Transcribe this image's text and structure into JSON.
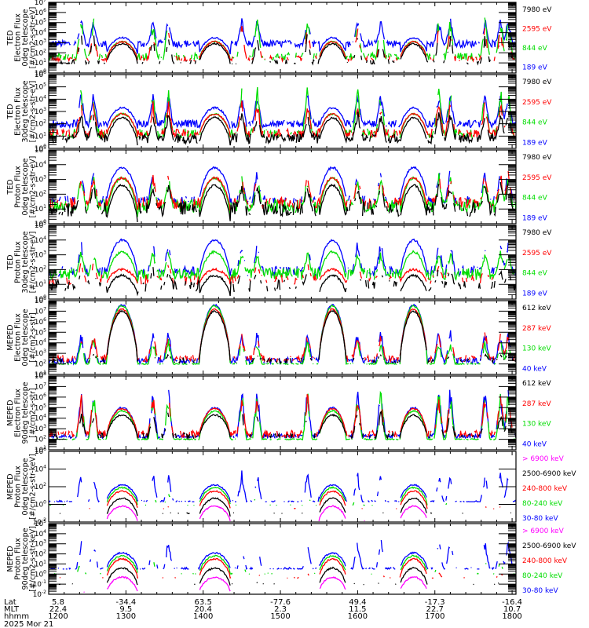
{
  "chart_data": {
    "type": "line",
    "title": "",
    "date_label": "2025 Mor 21",
    "x_axis": {
      "rows": [
        {
          "label": "Lat",
          "values": [
            "5.8",
            "-34.4",
            "63.5",
            "-77.6",
            "49.4",
            "-17.3",
            "-16.4"
          ]
        },
        {
          "label": "MLT",
          "values": [
            "22.4",
            "9.5",
            "20.4",
            "2.3",
            "11.5",
            "22.7",
            "10.7"
          ]
        },
        {
          "label": "hhmm",
          "values": [
            "1200",
            "1300",
            "1400",
            "1500",
            "1600",
            "1700",
            "1800"
          ]
        }
      ],
      "range_hours": [
        12.0,
        18.05
      ],
      "major_ticks_hours": [
        12,
        13,
        14,
        15,
        16,
        17,
        18
      ],
      "minor_per_major": 5
    },
    "panels": [
      {
        "ylabel": [
          "TED",
          "Electron Flux",
          "0deg telescope",
          "[#/cm2-s-str-eV]"
        ],
        "ylog_range": [
          0,
          7
        ],
        "ytick_exps": [
          0,
          1,
          2,
          3,
          4,
          5,
          6,
          7
        ],
        "legend": [
          {
            "text": "7980 eV",
            "color": "#000000"
          },
          {
            "text": "2595 eV",
            "color": "#ff0000"
          },
          {
            "text": "844 eV",
            "color": "#00dd00"
          },
          {
            "text": "189 eV",
            "color": "#0000ff"
          }
        ],
        "series": [
          {
            "name": "189 eV",
            "color": "#0000ff",
            "base": 2.9,
            "noise": 0.35,
            "arc_peak": 3.5,
            "spike_peak": 5.6,
            "floor": 1.8,
            "gap_prob": 0.05
          },
          {
            "name": "844 eV",
            "color": "#00dd00",
            "base": 1.6,
            "noise": 0.4,
            "arc_peak": 3.1,
            "spike_peak": 5.8,
            "floor": 1.3,
            "gap_prob": 0.3
          },
          {
            "name": "2595 eV",
            "color": "#ff0000",
            "base": 1.4,
            "noise": 0.3,
            "arc_peak": 3.1,
            "spike_peak": 4.7,
            "floor": 1.2,
            "gap_prob": 0.45
          },
          {
            "name": "7980 eV",
            "color": "#000000",
            "base": 1.0,
            "noise": 0.35,
            "arc_peak": 2.9,
            "spike_peak": 4.0,
            "floor": 0.9,
            "gap_prob": 0.5
          }
        ]
      },
      {
        "ylabel": [
          "TED",
          "Electron Flux",
          "30deg telescope",
          "[#/cm2-s-str-eV]"
        ],
        "ylog_range": [
          0,
          6
        ],
        "ytick_exps": [
          0,
          1,
          2,
          3,
          4,
          5,
          6
        ],
        "legend": [
          {
            "text": "7980 eV",
            "color": "#000000"
          },
          {
            "text": "2595 eV",
            "color": "#ff0000"
          },
          {
            "text": "844 eV",
            "color": "#00dd00"
          },
          {
            "text": "189 eV",
            "color": "#0000ff"
          }
        ],
        "series": [
          {
            "name": "189 eV",
            "color": "#0000ff",
            "base": 2.0,
            "noise": 0.3,
            "arc_peak": 3.3,
            "spike_peak": 4.7,
            "floor": 1.5,
            "gap_prob": 0.05
          },
          {
            "name": "844 eV",
            "color": "#00dd00",
            "base": 1.2,
            "noise": 0.4,
            "arc_peak": 2.8,
            "spike_peak": 5.2,
            "floor": 0.8,
            "gap_prob": 0.3
          },
          {
            "name": "2595 eV",
            "color": "#ff0000",
            "base": 1.2,
            "noise": 0.35,
            "arc_peak": 2.8,
            "spike_peak": 4.0,
            "floor": 0.9,
            "gap_prob": 0.2
          },
          {
            "name": "7980 eV",
            "color": "#000000",
            "base": 0.8,
            "noise": 0.4,
            "arc_peak": 2.5,
            "spike_peak": 3.2,
            "floor": 0.2,
            "gap_prob": 0.1
          }
        ]
      },
      {
        "ylabel": [
          "TED",
          "Proton Flux",
          "0deg telescope",
          "[#/cm2-s-str-eV]"
        ],
        "ylog_range": [
          0,
          5
        ],
        "ytick_exps": [
          0,
          1,
          2,
          3,
          4,
          5
        ],
        "legend": [
          {
            "text": "7980 eV",
            "color": "#000000"
          },
          {
            "text": "2595 eV",
            "color": "#ff0000"
          },
          {
            "text": "844 eV",
            "color": "#00dd00"
          },
          {
            "text": "189 eV",
            "color": "#0000ff"
          }
        ],
        "series": [
          {
            "name": "189 eV",
            "color": "#0000ff",
            "base": 1.6,
            "noise": 0.3,
            "arc_peak": 3.8,
            "spike_peak": 3.9,
            "floor": 1.4,
            "gap_prob": 0.4
          },
          {
            "name": "844 eV",
            "color": "#00dd00",
            "base": 1.2,
            "noise": 0.45,
            "arc_peak": 3.1,
            "spike_peak": 3.5,
            "floor": 0.3,
            "gap_prob": 0.1
          },
          {
            "name": "2595 eV",
            "color": "#ff0000",
            "base": 1.4,
            "noise": 0.4,
            "arc_peak": 3.1,
            "spike_peak": 3.6,
            "floor": 0.8,
            "gap_prob": 0.3
          },
          {
            "name": "7980 eV",
            "color": "#000000",
            "base": 1.0,
            "noise": 0.5,
            "arc_peak": 2.6,
            "spike_peak": 2.9,
            "floor": 0.0,
            "gap_prob": 0.2
          }
        ]
      },
      {
        "ylabel": [
          "TED",
          "Proton Flux",
          "30deg telescope",
          "[#/cm2-s-str-eV]"
        ],
        "ylog_range": [
          0,
          5
        ],
        "ytick_exps": [
          0,
          1,
          2,
          3,
          4,
          5
        ],
        "legend": [
          {
            "text": "7980 eV",
            "color": "#000000"
          },
          {
            "text": "2595 eV",
            "color": "#ff0000"
          },
          {
            "text": "844 eV",
            "color": "#00dd00"
          },
          {
            "text": "189 eV",
            "color": "#0000ff"
          }
        ],
        "series": [
          {
            "name": "189 eV",
            "color": "#0000ff",
            "base": 1.9,
            "noise": 0.35,
            "arc_peak": 4.0,
            "spike_peak": 4.2,
            "floor": 1.4,
            "gap_prob": 0.3
          },
          {
            "name": "844 eV",
            "color": "#00dd00",
            "base": 1.7,
            "noise": 0.4,
            "arc_peak": 3.2,
            "spike_peak": 3.4,
            "floor": 1.0,
            "gap_prob": 0.05
          },
          {
            "name": "2595 eV",
            "color": "#ff0000",
            "base": 1.3,
            "noise": 0.35,
            "arc_peak": 2.0,
            "spike_peak": 2.6,
            "floor": 1.0,
            "gap_prob": 0.5
          },
          {
            "name": "7980 eV",
            "color": "#000000",
            "base": 0.9,
            "noise": 0.4,
            "arc_peak": 1.6,
            "spike_peak": 2.2,
            "floor": 0.2,
            "gap_prob": 0.5
          }
        ]
      },
      {
        "ylabel": [
          "MEPED",
          "Electron Flux",
          "0deg telescope",
          "[#/cm2-s-str]"
        ],
        "ylog_range": [
          1,
          8
        ],
        "ytick_exps": [
          1,
          2,
          3,
          4,
          5,
          6,
          7,
          8
        ],
        "legend": [
          {
            "text": "612 keV",
            "color": "#000000"
          },
          {
            "text": "287 keV",
            "color": "#ff0000"
          },
          {
            "text": "130 keV",
            "color": "#00dd00"
          },
          {
            "text": "40 keV",
            "color": "#0000ff"
          }
        ],
        "series": [
          {
            "name": "40 keV",
            "color": "#0000ff",
            "base": 2.3,
            "noise": 0.3,
            "arc_peak": 7.6,
            "spike_peak": 5.5,
            "floor": 2.0,
            "gap_prob": 0.1
          },
          {
            "name": "130 keV",
            "color": "#00dd00",
            "base": 2.0,
            "noise": 0.05,
            "arc_peak": 7.5,
            "spike_peak": 4.5,
            "floor": 1.95,
            "gap_prob": 0.2
          },
          {
            "name": "287 keV",
            "color": "#ff0000",
            "base": 2.5,
            "noise": 0.35,
            "arc_peak": 7.2,
            "spike_peak": 5.2,
            "floor": 2.2,
            "gap_prob": 0.35
          },
          {
            "name": "612 keV",
            "color": "#000000",
            "base": 2.3,
            "noise": 0.3,
            "arc_peak": 7.0,
            "spike_peak": 3.0,
            "floor": 2.1,
            "gap_prob": 0.5
          }
        ]
      },
      {
        "ylabel": [
          "MEPED",
          "Electron Flux",
          "90deg telescope",
          "[#/cm2-s-str]"
        ],
        "ylog_range": [
          1,
          8
        ],
        "ytick_exps": [
          1,
          2,
          3,
          4,
          5,
          6,
          7,
          8
        ],
        "legend": [
          {
            "text": "612 keV",
            "color": "#000000"
          },
          {
            "text": "287 keV",
            "color": "#ff0000"
          },
          {
            "text": "130 keV",
            "color": "#00dd00"
          },
          {
            "text": "40 keV",
            "color": "#0000ff"
          }
        ],
        "series": [
          {
            "name": "40 keV",
            "color": "#0000ff",
            "base": 2.3,
            "noise": 0.2,
            "arc_peak": 5.0,
            "spike_peak": 7.3,
            "floor": 2.0,
            "gap_prob": 0.1
          },
          {
            "name": "130 keV",
            "color": "#00dd00",
            "base": 2.0,
            "noise": 0.05,
            "arc_peak": 4.7,
            "spike_peak": 7.0,
            "floor": 1.95,
            "gap_prob": 0.15
          },
          {
            "name": "287 keV",
            "color": "#ff0000",
            "base": 2.5,
            "noise": 0.35,
            "arc_peak": 4.9,
            "spike_peak": 6.6,
            "floor": 2.2,
            "gap_prob": 0.3
          },
          {
            "name": "612 keV",
            "color": "#000000",
            "base": 2.3,
            "noise": 0.3,
            "arc_peak": 4.3,
            "spike_peak": 4.9,
            "floor": 2.1,
            "gap_prob": 0.4
          }
        ]
      },
      {
        "ylabel": [
          "MEPED",
          "Proton Flux",
          "0deg telescope",
          "[#/cm2-s-str-keV]"
        ],
        "ylog_range": [
          -2,
          6
        ],
        "ytick_exps": [
          -2,
          0,
          2,
          4,
          6
        ],
        "legend": [
          {
            "text": "> 6900 keV",
            "color": "#ff00ff"
          },
          {
            "text": "2500-6900 keV",
            "color": "#000000"
          },
          {
            "text": "240-800 keV",
            "color": "#ff0000"
          },
          {
            "text": "80-240 keV",
            "color": "#00dd00"
          },
          {
            "text": "30-80 keV",
            "color": "#0000ff"
          }
        ],
        "series": [
          {
            "name": "30-80 keV",
            "color": "#0000ff",
            "base": 0.3,
            "noise": 0.15,
            "arc_peak": 2.2,
            "spike_peak": 3.9,
            "floor": 0.3,
            "gap_prob": 0.35
          },
          {
            "name": "80-240 keV",
            "color": "#00dd00",
            "base": -0.1,
            "noise": 0.05,
            "arc_peak": 1.9,
            "spike_peak": 1.6,
            "floor": -0.1,
            "gap_prob": 0.7
          },
          {
            "name": "240-800 keV",
            "color": "#ff0000",
            "base": -0.5,
            "noise": 0.05,
            "arc_peak": 1.5,
            "spike_peak": -0.2,
            "floor": -0.5,
            "gap_prob": 0.85
          },
          {
            "name": "2500-6900 keV",
            "color": "#000000",
            "base": -1.0,
            "noise": 0.05,
            "arc_peak": 0.7,
            "spike_peak": -0.9,
            "floor": -1.4,
            "gap_prob": 0.8
          },
          {
            "name": "> 6900 keV",
            "color": "#ff00ff",
            "base": -1.9,
            "noise": 0.05,
            "arc_peak": -0.2,
            "spike_peak": -1.9,
            "floor": -1.9,
            "gap_prob": 0.97
          }
        ]
      },
      {
        "ylabel": [
          "MEPED",
          "Proton Flux",
          "90deg telescope",
          "[#/cm2-s-str-keV]"
        ],
        "ylog_range": [
          -2,
          5
        ],
        "ytick_exps": [
          -2,
          -1,
          0,
          1,
          2,
          3,
          4,
          5
        ],
        "legend": [
          {
            "text": "> 6900 keV",
            "color": "#ff00ff"
          },
          {
            "text": "2500-6900 keV",
            "color": "#000000"
          },
          {
            "text": "240-800 keV",
            "color": "#ff0000"
          },
          {
            "text": "80-240 keV",
            "color": "#00dd00"
          },
          {
            "text": "30-80 keV",
            "color": "#0000ff"
          }
        ],
        "series": [
          {
            "name": "30-80 keV",
            "color": "#0000ff",
            "base": 0.5,
            "noise": 0.15,
            "arc_peak": 2.1,
            "spike_peak": 3.7,
            "floor": 0.5,
            "gap_prob": 0.35
          },
          {
            "name": "80-240 keV",
            "color": "#00dd00",
            "base": 0.0,
            "noise": 0.1,
            "arc_peak": 1.8,
            "spike_peak": 1.5,
            "floor": 0.0,
            "gap_prob": 0.7
          },
          {
            "name": "240-800 keV",
            "color": "#ff0000",
            "base": -0.4,
            "noise": 0.1,
            "arc_peak": 1.5,
            "spike_peak": 0.2,
            "floor": -0.4,
            "gap_prob": 0.75
          },
          {
            "name": "2500-6900 keV",
            "color": "#000000",
            "base": -1.0,
            "noise": 0.05,
            "arc_peak": 0.6,
            "spike_peak": -0.8,
            "floor": -1.2,
            "gap_prob": 0.8
          },
          {
            "name": "> 6900 keV",
            "color": "#ff00ff",
            "base": -1.8,
            "noise": 0.05,
            "arc_peak": -0.3,
            "spike_peak": -1.8,
            "floor": -1.8,
            "gap_prob": 0.97
          }
        ]
      }
    ],
    "events": {
      "radiation_belt_arcs_hours": [
        [
          12.75,
          13.15
        ],
        [
          13.95,
          14.35
        ],
        [
          15.5,
          15.85
        ],
        [
          16.55,
          16.9
        ]
      ],
      "auroral_spikes_hours": [
        12.42,
        12.58,
        13.35,
        13.55,
        14.5,
        14.7,
        15.35,
        15.55,
        16.0,
        16.3,
        17.05,
        17.2,
        17.65,
        17.85,
        17.95
      ]
    }
  }
}
